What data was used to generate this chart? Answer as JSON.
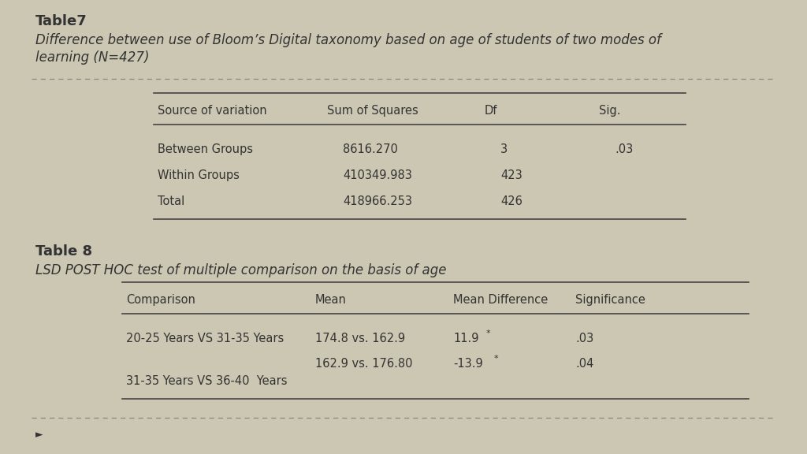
{
  "bg_color": "#cbc7b2",
  "title1": "Table7",
  "subtitle1_line1": "Difference between use of Bloom’s Digital taxonomy based on age of students of two modes of",
  "subtitle1_line2": "learning (N=427)",
  "table1_headers": [
    "Source of variation",
    "Sum of Squares",
    "Df",
    "Sig."
  ],
  "table1_rows": [
    [
      "Between Groups",
      "8616.270",
      "3",
      ".03"
    ],
    [
      "Within Groups",
      "410349.983",
      "423",
      ""
    ],
    [
      "Total",
      "418966.253",
      "426",
      ""
    ]
  ],
  "title2": "Table 8",
  "subtitle2": "LSD POST HOC test of multiple comparison on the basis of age",
  "table2_headers": [
    "Comparison",
    "Mean",
    "Mean Difference",
    "Significance"
  ],
  "table2_row1_comp": "20-25 Years VS 31-35 Years",
  "table2_row1_mean": "174.8 vs. 162.9",
  "table2_row1_diff": "11.9",
  "table2_row1_sig": ".03",
  "table2_row2_comp": "31-35 Years VS 36-40  Years",
  "table2_row2_mean": "162.9 vs. 176.80",
  "table2_row2_diff": "-13.9",
  "table2_row2_sig": ".04",
  "font_color": "#333333",
  "line_color": "#444444",
  "dash_color": "#888880"
}
